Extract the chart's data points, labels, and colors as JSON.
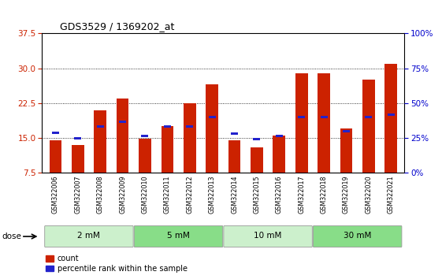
{
  "title": "GDS3529 / 1369202_at",
  "samples": [
    "GSM322006",
    "GSM322007",
    "GSM322008",
    "GSM322009",
    "GSM322010",
    "GSM322011",
    "GSM322012",
    "GSM322013",
    "GSM322014",
    "GSM322015",
    "GSM322016",
    "GSM322017",
    "GSM322018",
    "GSM322019",
    "GSM322020",
    "GSM322021"
  ],
  "red_values": [
    14.5,
    13.5,
    21.0,
    23.5,
    14.8,
    17.5,
    22.5,
    26.5,
    14.5,
    13.0,
    15.5,
    29.0,
    29.0,
    17.0,
    27.5,
    31.0
  ],
  "blue_values": [
    16.2,
    15.0,
    17.5,
    18.5,
    15.5,
    17.5,
    17.5,
    19.5,
    16.0,
    14.8,
    15.5,
    19.5,
    19.5,
    16.5,
    19.5,
    20.0
  ],
  "doses": [
    {
      "label": "2 mM",
      "start": 0,
      "end": 3,
      "color": "#ccf0cc"
    },
    {
      "label": "5 mM",
      "start": 4,
      "end": 7,
      "color": "#88dd88"
    },
    {
      "label": "10 mM",
      "start": 8,
      "end": 11,
      "color": "#ccf0cc"
    },
    {
      "label": "30 mM",
      "start": 12,
      "end": 15,
      "color": "#88dd88"
    }
  ],
  "ylim_left": [
    7.5,
    37.5
  ],
  "yticks_left": [
    7.5,
    15.0,
    22.5,
    30.0,
    37.5
  ],
  "ylim_right": [
    0,
    100
  ],
  "yticks_right": [
    0,
    25,
    50,
    75,
    100
  ],
  "bar_color": "#cc2200",
  "blue_color": "#2222cc",
  "bar_width": 0.55,
  "tick_label_color_left": "#cc2200",
  "tick_label_color_right": "#0000cc"
}
